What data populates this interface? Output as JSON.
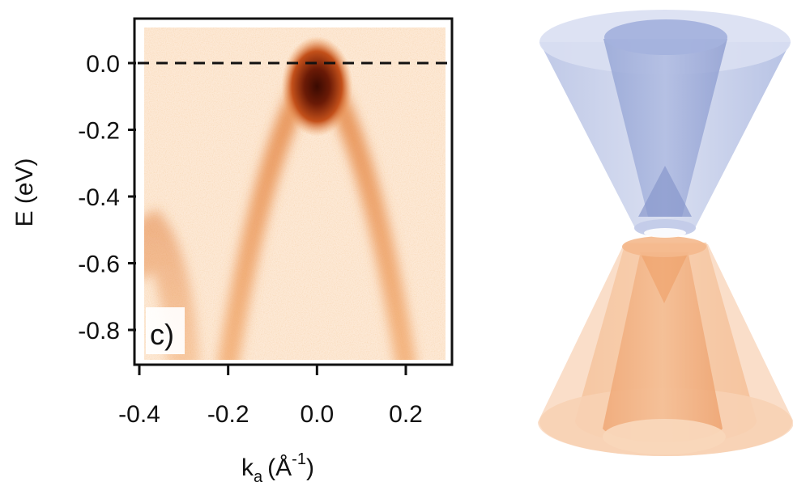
{
  "chart_data": {
    "type": "heatmap",
    "title": "",
    "panel_label": "c)",
    "xlabel_main": "k",
    "xlabel_sub": "a",
    "xlabel_unit_open": "(",
    "xlabel_unit": "Å",
    "xlabel_exp": "-1",
    "xlabel_unit_close": ")",
    "ylabel": "E (eV)",
    "xlim": [
      -0.4,
      0.3
    ],
    "ylim": [
      -0.9,
      0.12
    ],
    "x_ticks": [
      -0.4,
      -0.2,
      0.0,
      0.2
    ],
    "x_tick_labels": [
      "-0.4",
      "-0.2",
      "0.0",
      "0.2"
    ],
    "y_ticks": [
      0.0,
      -0.2,
      -0.4,
      -0.6,
      -0.8
    ],
    "y_tick_labels": [
      "0.0",
      "-0.2",
      "-0.4",
      "-0.6",
      "-0.8"
    ],
    "fermi_level": 0.0,
    "bands": [
      {
        "apex": [
          0.0,
          0.0
        ],
        "left_end": [
          -0.2,
          -0.9
        ],
        "right_end": [
          0.2,
          -0.9
        ]
      },
      {
        "apex": [
          -0.37,
          -0.5
        ],
        "left_end": [
          -0.4,
          -0.6
        ],
        "right_end": [
          -0.3,
          -0.9
        ]
      }
    ],
    "colors": {
      "background": "#fde8d4",
      "band": "#f0a060",
      "peak": "#5a1205",
      "upper_cone": "#9aaad6",
      "lower_cone": "#f2b387"
    }
  }
}
